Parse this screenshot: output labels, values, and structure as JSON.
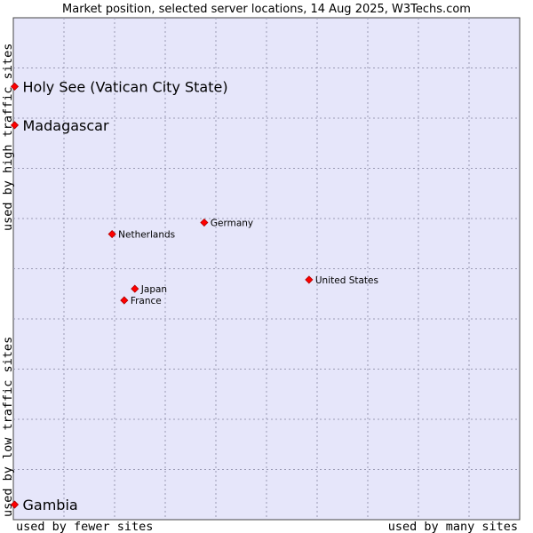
{
  "chart_data": {
    "type": "scatter",
    "title": "Market position, selected server locations, 14 Aug 2025, W3Techs.com",
    "xlabel_low": "used by fewer sites",
    "xlabel_high": "used by many sites",
    "ylabel_low": "used by low traffic sites",
    "ylabel_high": "used by high traffic sites",
    "xlim": [
      0,
      100
    ],
    "ylim": [
      0,
      100
    ],
    "grid": true,
    "marker_color": "#ff0000",
    "plot_background": "#e6e6fa",
    "points": [
      {
        "label": "Holy See (Vatican City State)",
        "x": 0,
        "y": 86.3,
        "emphasis": true
      },
      {
        "label": "Madagascar",
        "x": 0,
        "y": 78.6,
        "emphasis": true
      },
      {
        "label": "Germany",
        "x": 37.7,
        "y": 59.2,
        "emphasis": false
      },
      {
        "label": "Netherlands",
        "x": 19.5,
        "y": 56.9,
        "emphasis": false
      },
      {
        "label": "United States",
        "x": 58.4,
        "y": 47.8,
        "emphasis": false
      },
      {
        "label": "Japan",
        "x": 24.0,
        "y": 46.0,
        "emphasis": false
      },
      {
        "label": "France",
        "x": 21.9,
        "y": 43.7,
        "emphasis": false
      },
      {
        "label": "Gambia",
        "x": 0,
        "y": 3.0,
        "emphasis": true
      }
    ]
  }
}
